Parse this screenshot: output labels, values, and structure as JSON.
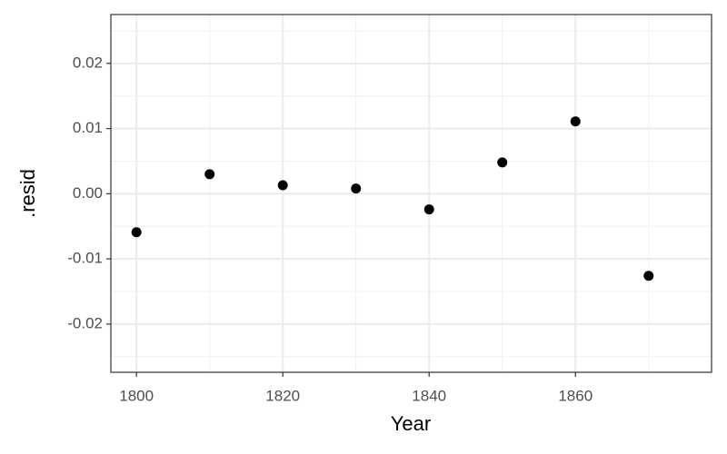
{
  "chart_data": {
    "type": "scatter",
    "x_label": "Year",
    "y_label": ".resid",
    "series": [
      {
        "color": "#000000",
        "x": [
          1800,
          1810,
          1820,
          1830,
          1840,
          1850,
          1860,
          1870
        ],
        "values": [
          -0.0059,
          0.003,
          0.0013,
          0.0008,
          -0.0024,
          0.0048,
          0.0111,
          -0.0126
        ]
      }
    ],
    "xlim": [
      1796.5,
      1878.6
    ],
    "xticks": [
      1800,
      1820,
      1840,
      1860
    ],
    "ylim": [
      -0.0274,
      0.0275
    ],
    "yticks": [
      -0.02,
      -0.01,
      {
        "value": 0,
        "label": "0.00"
      },
      0.01,
      0.02
    ],
    "grid": true
  }
}
